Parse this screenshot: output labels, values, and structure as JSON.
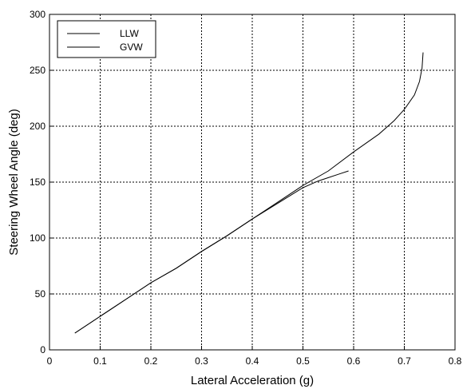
{
  "chart_data": {
    "type": "line",
    "title": "",
    "xlabel": "Lateral Acceleration (g)",
    "ylabel": "Steering Wheel Angle (deg)",
    "xlim": [
      0,
      0.8
    ],
    "ylim": [
      0,
      300
    ],
    "xticks": [
      0,
      0.1,
      0.2,
      0.3,
      0.4,
      0.5,
      0.6,
      0.7,
      0.8
    ],
    "xtick_labels": [
      "0",
      "0.1",
      "0.2",
      "0.3",
      "0.4",
      "0.5",
      "0.6",
      "0.7",
      "0.8"
    ],
    "yticks": [
      0,
      50,
      100,
      150,
      200,
      250,
      300
    ],
    "ytick_labels": [
      "0",
      "50",
      "100",
      "150",
      "200",
      "250",
      "300"
    ],
    "grid": true,
    "legend_position": "top-left",
    "series": [
      {
        "name": "LLW",
        "x": [
          0.05,
          0.1,
          0.15,
          0.2,
          0.25,
          0.3,
          0.35,
          0.4,
          0.45,
          0.5,
          0.55,
          0.6,
          0.65,
          0.68,
          0.7,
          0.72,
          0.73,
          0.735,
          0.737
        ],
        "y": [
          15,
          30,
          45,
          60,
          73,
          88,
          102,
          117,
          132,
          147,
          160,
          177,
          193,
          205,
          215,
          228,
          240,
          252,
          266
        ]
      },
      {
        "name": "GVW",
        "x": [
          0.05,
          0.1,
          0.15,
          0.2,
          0.25,
          0.3,
          0.35,
          0.4,
          0.45,
          0.5,
          0.53,
          0.55,
          0.57,
          0.59
        ],
        "y": [
          15,
          30,
          45,
          60,
          73,
          88,
          102,
          117,
          131,
          145,
          151,
          154,
          157,
          160
        ]
      }
    ]
  }
}
